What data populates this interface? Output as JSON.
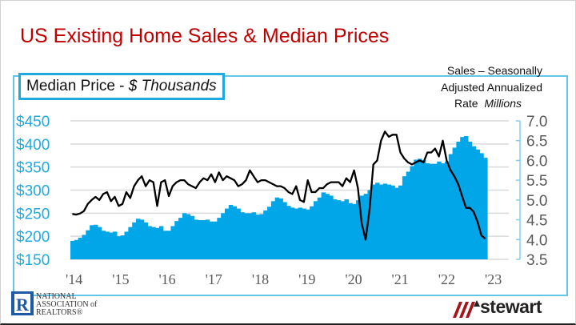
{
  "title": "US Existing Home Sales & Median Prices",
  "left_label": {
    "prefix": "Median Price - ",
    "italic": "$ Thousands"
  },
  "right_label": {
    "line1": "Sales – Seasonally",
    "line2": "Adjusted Annualized",
    "line3a": "Rate",
    "line3b": "Millions"
  },
  "logos": {
    "nar": "NATIONAL ASSOCIATION of REALTORS",
    "nar_lines": [
      "NATIONAL",
      "ASSOCIATION of",
      "REALTORS®"
    ],
    "stewart": "stewart"
  },
  "chart_data": {
    "type": "bar+line",
    "x_start": "2014-01",
    "x_end": "2022-12",
    "frequency": "monthly",
    "x_tick_labels": [
      "'14",
      "'15",
      "'16",
      "'17",
      "'18",
      "'19",
      "'20",
      "'21",
      "'22",
      "'23"
    ],
    "left_axis": {
      "label": "Median Price - $ Thousands",
      "ylim": [
        150,
        450
      ],
      "ticks": [
        "$150",
        "$200",
        "$250",
        "$300",
        "$350",
        "$400",
        "$450"
      ],
      "tick_values": [
        150,
        200,
        250,
        300,
        350,
        400,
        450
      ]
    },
    "right_axis": {
      "label": "Sales – Seasonally Adjusted Annualized Rate Millions",
      "ylim": [
        3.5,
        7.0
      ],
      "ticks": [
        "3.5",
        "4.0",
        "4.5",
        "5.0",
        "5.5",
        "6.0",
        "6.5",
        "7.0"
      ],
      "tick_values": [
        3.5,
        4.0,
        4.5,
        5.0,
        5.5,
        6.0,
        6.5,
        7.0
      ]
    },
    "grid": true,
    "series": [
      {
        "type": "bar",
        "axis": "left",
        "color": "#00a6e8",
        "values": [
          190,
          192,
          197,
          203,
          213,
          224,
          225,
          220,
          212,
          210,
          208,
          210,
          200,
          202,
          210,
          220,
          230,
          238,
          236,
          230,
          222,
          220,
          218,
          222,
          212,
          212,
          222,
          233,
          240,
          250,
          248,
          244,
          236,
          235,
          235,
          236,
          232,
          232,
          240,
          250,
          260,
          268,
          265,
          260,
          252,
          250,
          250,
          252,
          247,
          248,
          256,
          264,
          276,
          284,
          282,
          274,
          266,
          262,
          260,
          262,
          260,
          258,
          265,
          276,
          284,
          295,
          292,
          288,
          280,
          278,
          276,
          280,
          272,
          270,
          278,
          288,
          292,
          300,
          312,
          316,
          312,
          314,
          312,
          310,
          305,
          310,
          330,
          340,
          352,
          366,
          368,
          365,
          358,
          357,
          357,
          362,
          358,
          362,
          378,
          392,
          405,
          415,
          417,
          405,
          395,
          388,
          380,
          370
        ]
      },
      {
        "type": "line",
        "axis": "right",
        "color": "#000000",
        "values": [
          4.65,
          4.63,
          4.66,
          4.72,
          4.9,
          5.0,
          5.08,
          5.0,
          5.15,
          5.2,
          4.97,
          5.08,
          4.85,
          4.9,
          5.2,
          5.05,
          5.35,
          5.5,
          5.6,
          5.35,
          5.5,
          5.45,
          4.85,
          5.45,
          5.5,
          5.1,
          5.35,
          5.45,
          5.5,
          5.5,
          5.4,
          5.35,
          5.3,
          5.45,
          5.55,
          5.5,
          5.65,
          5.45,
          5.7,
          5.5,
          5.6,
          5.55,
          5.5,
          5.35,
          5.4,
          5.5,
          5.75,
          5.6,
          5.45,
          5.5,
          5.5,
          5.45,
          5.4,
          5.35,
          5.35,
          5.3,
          5.2,
          5.15,
          5.35,
          5.0,
          4.95,
          5.5,
          5.2,
          5.2,
          5.3,
          5.3,
          5.4,
          5.45,
          5.45,
          5.45,
          5.35,
          5.55,
          5.45,
          5.75,
          5.3,
          4.4,
          4.0,
          4.75,
          5.9,
          6.0,
          6.5,
          6.73,
          6.6,
          6.65,
          6.65,
          6.2,
          6.05,
          5.95,
          5.9,
          5.95,
          6.0,
          5.95,
          6.2,
          6.2,
          6.3,
          6.1,
          6.5,
          6.0,
          5.75,
          5.6,
          5.4,
          5.1,
          4.8,
          4.8,
          4.7,
          4.45,
          4.1,
          4.02
        ]
      }
    ]
  }
}
